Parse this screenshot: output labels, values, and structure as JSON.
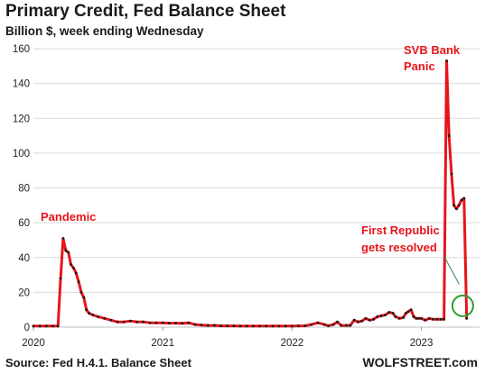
{
  "chart_data": {
    "type": "line",
    "title": "Primary Credit, Fed Balance Sheet",
    "subtitle": "Billion $, week ending Wednesday",
    "source": "Source: Fed H.4.1. Balance Sheet",
    "brand": "WOLFSTREET.com",
    "xlabel": "",
    "ylabel": "",
    "xlim": [
      2020.0,
      2023.45
    ],
    "ylim": [
      0,
      160
    ],
    "yticks": [
      0,
      20,
      40,
      60,
      80,
      100,
      120,
      140,
      160
    ],
    "xticks": [
      {
        "value": 2020,
        "label": "2020"
      },
      {
        "value": 2021,
        "label": "2021"
      },
      {
        "value": 2022,
        "label": "2022"
      },
      {
        "value": 2023,
        "label": "2023"
      }
    ],
    "grid": "horizontal",
    "legend": "none",
    "colors": {
      "line": "#e8141b",
      "marker": "#1a1a1a",
      "annotation": "#e8141b",
      "grid": "#d9d9d9",
      "highlight_circle": "#2aa02a",
      "pointer": "#2a8a4a"
    },
    "annotations": [
      {
        "text": "Pandemic",
        "x": 2020.27,
        "y": 51
      },
      {
        "text": "SVB Bank Panic",
        "lines": [
          "SVB Bank",
          "Panic"
        ],
        "x": 2023.21,
        "y": 153
      },
      {
        "text": "First Republic gets resolved",
        "lines": [
          "First Republic",
          "gets resolved"
        ],
        "x": 2023.32,
        "y": 5
      }
    ],
    "series": [
      {
        "points": [
          [
            2020.0,
            0.6
          ],
          [
            2020.05,
            0.6
          ],
          [
            2020.1,
            0.6
          ],
          [
            2020.15,
            0.6
          ],
          [
            2020.19,
            0.6
          ],
          [
            2020.21,
            28
          ],
          [
            2020.23,
            51
          ],
          [
            2020.25,
            44
          ],
          [
            2020.27,
            43
          ],
          [
            2020.29,
            36
          ],
          [
            2020.31,
            34
          ],
          [
            2020.33,
            31
          ],
          [
            2020.35,
            26
          ],
          [
            2020.37,
            20
          ],
          [
            2020.39,
            17
          ],
          [
            2020.41,
            10
          ],
          [
            2020.43,
            8
          ],
          [
            2020.46,
            7
          ],
          [
            2020.5,
            6
          ],
          [
            2020.55,
            5
          ],
          [
            2020.6,
            4
          ],
          [
            2020.65,
            3
          ],
          [
            2020.7,
            3
          ],
          [
            2020.75,
            3.5
          ],
          [
            2020.8,
            3
          ],
          [
            2020.85,
            3
          ],
          [
            2020.9,
            2.5
          ],
          [
            2020.95,
            2.5
          ],
          [
            2021.0,
            2.5
          ],
          [
            2021.05,
            2.3
          ],
          [
            2021.1,
            2.3
          ],
          [
            2021.15,
            2.2
          ],
          [
            2021.2,
            2.5
          ],
          [
            2021.25,
            1.5
          ],
          [
            2021.3,
            1.2
          ],
          [
            2021.35,
            1
          ],
          [
            2021.4,
            1
          ],
          [
            2021.45,
            0.8
          ],
          [
            2021.5,
            0.7
          ],
          [
            2021.55,
            0.7
          ],
          [
            2021.6,
            0.6
          ],
          [
            2021.65,
            0.6
          ],
          [
            2021.7,
            0.6
          ],
          [
            2021.75,
            0.6
          ],
          [
            2021.8,
            0.6
          ],
          [
            2021.85,
            0.6
          ],
          [
            2021.9,
            0.6
          ],
          [
            2021.95,
            0.6
          ],
          [
            2022.0,
            0.6
          ],
          [
            2022.05,
            0.7
          ],
          [
            2022.1,
            0.8
          ],
          [
            2022.15,
            1.5
          ],
          [
            2022.2,
            2.5
          ],
          [
            2022.25,
            1.5
          ],
          [
            2022.28,
            0.8
          ],
          [
            2022.32,
            1.5
          ],
          [
            2022.35,
            3
          ],
          [
            2022.38,
            1
          ],
          [
            2022.42,
            1
          ],
          [
            2022.45,
            1
          ],
          [
            2022.48,
            4
          ],
          [
            2022.51,
            3
          ],
          [
            2022.54,
            3.5
          ],
          [
            2022.57,
            5
          ],
          [
            2022.6,
            4
          ],
          [
            2022.63,
            4.5
          ],
          [
            2022.66,
            6
          ],
          [
            2022.69,
            6.5
          ],
          [
            2022.72,
            7
          ],
          [
            2022.75,
            8.5
          ],
          [
            2022.78,
            8
          ],
          [
            2022.8,
            6
          ],
          [
            2022.83,
            5
          ],
          [
            2022.86,
            5.5
          ],
          [
            2022.88,
            8
          ],
          [
            2022.9,
            9
          ],
          [
            2022.92,
            10
          ],
          [
            2022.94,
            6
          ],
          [
            2022.96,
            5
          ],
          [
            2022.98,
            5
          ],
          [
            2023.0,
            5
          ],
          [
            2023.03,
            4
          ],
          [
            2023.06,
            5
          ],
          [
            2023.09,
            4.5
          ],
          [
            2023.12,
            4.5
          ],
          [
            2023.15,
            4.5
          ],
          [
            2023.175,
            4.5
          ],
          [
            2023.195,
            153
          ],
          [
            2023.214,
            110
          ],
          [
            2023.233,
            88
          ],
          [
            2023.252,
            70
          ],
          [
            2023.271,
            68
          ],
          [
            2023.29,
            70
          ],
          [
            2023.31,
            73
          ],
          [
            2023.33,
            74
          ],
          [
            2023.35,
            5
          ]
        ]
      }
    ]
  }
}
